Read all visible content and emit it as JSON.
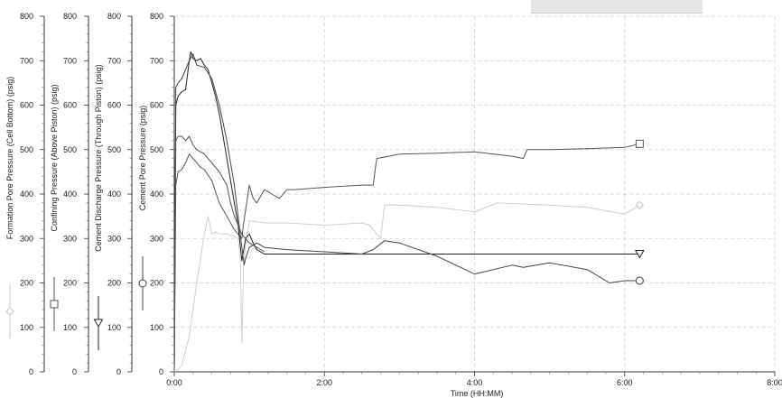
{
  "chart_data": {
    "type": "line",
    "xlabel": "Time (HH:MM)",
    "x_ticks": [
      "0:00",
      "2:00",
      "4:00",
      "6:00",
      "8:00"
    ],
    "xlim_hours": [
      0,
      8
    ],
    "ylim": [
      0,
      800
    ],
    "y_ticks": [
      0,
      100,
      200,
      300,
      400,
      500,
      600,
      700,
      800
    ],
    "grid": true,
    "y_axes": [
      {
        "label": "Formation Pore Pressure (Cell Bottom) (psig)",
        "marker": "diamond",
        "color": "#c8c8c8"
      },
      {
        "label": "Confining Pressure (Above Piston) (psig)",
        "marker": "square",
        "color": "#555555"
      },
      {
        "label": "Cement Discharge Pressure (Through Piston) (psig)",
        "marker": "triangle-down",
        "color": "#222222"
      },
      {
        "label": "Cement Pore Pressure (psig)",
        "marker": "circle",
        "color": "#444444"
      }
    ],
    "series": [
      {
        "marker": "diamond",
        "color": "#cfcfcf",
        "x": [
          0,
          0.05,
          0.1,
          0.2,
          0.3,
          0.4,
          0.45,
          0.5,
          0.55,
          0.6,
          0.7,
          0.8,
          0.85,
          0.88,
          0.9,
          0.92,
          0.95,
          1.0,
          1.2,
          1.5,
          2.0,
          2.5,
          2.6,
          2.65,
          2.75,
          2.8,
          3.0,
          3.5,
          4.0,
          4.3,
          5.0,
          5.5,
          6.0,
          6.2
        ],
        "y": [
          0,
          5,
          15,
          80,
          200,
          310,
          350,
          310,
          315,
          310,
          310,
          305,
          300,
          250,
          65,
          230,
          290,
          340,
          335,
          335,
          330,
          335,
          330,
          320,
          300,
          375,
          375,
          370,
          360,
          380,
          375,
          370,
          355,
          375
        ]
      },
      {
        "marker": "square",
        "color": "#555555",
        "x": [
          0,
          0.02,
          0.05,
          0.1,
          0.15,
          0.2,
          0.25,
          0.3,
          0.35,
          0.4,
          0.5,
          0.6,
          0.7,
          0.8,
          0.85,
          0.9,
          0.92,
          1.0,
          1.05,
          1.1,
          1.2,
          1.3,
          1.4,
          1.5,
          1.6,
          2.0,
          2.5,
          2.65,
          2.68,
          2.7,
          3.0,
          3.5,
          4.0,
          4.5,
          4.65,
          4.7,
          5.0,
          5.5,
          6.0,
          6.2
        ],
        "y": [
          0,
          420,
          450,
          455,
          470,
          490,
          480,
          470,
          460,
          455,
          430,
          380,
          350,
          320,
          310,
          300,
          330,
          420,
          390,
          380,
          410,
          400,
          390,
          410,
          410,
          415,
          420,
          420,
          460,
          480,
          490,
          492,
          495,
          485,
          480,
          500,
          500,
          502,
          505,
          513
        ]
      },
      {
        "marker": "triangle-down",
        "color": "#222222",
        "x": [
          0,
          0.02,
          0.05,
          0.1,
          0.15,
          0.2,
          0.22,
          0.25,
          0.3,
          0.35,
          0.4,
          0.45,
          0.5,
          0.55,
          0.6,
          0.7,
          0.8,
          0.85,
          0.9,
          0.92,
          0.95,
          1.0,
          1.05,
          1.1,
          1.2,
          1.5,
          2.0,
          2.5,
          3.0,
          3.5,
          4.0,
          4.5,
          5.0,
          5.5,
          6.0,
          6.2
        ],
        "y": [
          0,
          600,
          620,
          630,
          635,
          700,
          720,
          705,
          700,
          705,
          690,
          680,
          650,
          620,
          580,
          480,
          380,
          330,
          250,
          270,
          300,
          310,
          290,
          275,
          265,
          265,
          265,
          265,
          265,
          265,
          265,
          265,
          265,
          265,
          265,
          265
        ]
      },
      {
        "marker": "circle",
        "color": "#444444",
        "x": [
          0,
          0.02,
          0.05,
          0.1,
          0.15,
          0.2,
          0.25,
          0.3,
          0.4,
          0.5,
          0.6,
          0.7,
          0.8,
          0.9,
          0.93,
          0.95,
          1.0,
          1.1,
          1.2,
          1.5,
          2.0,
          2.5,
          2.65,
          2.8,
          3.0,
          3.5,
          4.0,
          4.5,
          4.65,
          5.0,
          5.5,
          5.8,
          6.0,
          6.2
        ],
        "y": [
          0,
          640,
          650,
          660,
          680,
          700,
          715,
          690,
          685,
          660,
          600,
          520,
          420,
          280,
          240,
          255,
          280,
          290,
          280,
          275,
          270,
          265,
          275,
          295,
          290,
          260,
          220,
          240,
          235,
          245,
          230,
          200,
          205,
          205
        ]
      },
      {
        "marker": "none",
        "color": "#555555",
        "x": [
          0,
          0.02,
          0.05,
          0.1,
          0.15,
          0.2,
          0.25,
          0.3,
          0.4,
          0.5,
          0.6,
          0.7,
          0.75,
          0.8,
          0.85,
          0.9,
          0.95,
          1.0,
          1.1,
          1.2
        ],
        "y": [
          0,
          520,
          530,
          530,
          520,
          530,
          510,
          500,
          490,
          470,
          450,
          420,
          380,
          350,
          330,
          310,
          300,
          290,
          280,
          270
        ]
      }
    ]
  }
}
